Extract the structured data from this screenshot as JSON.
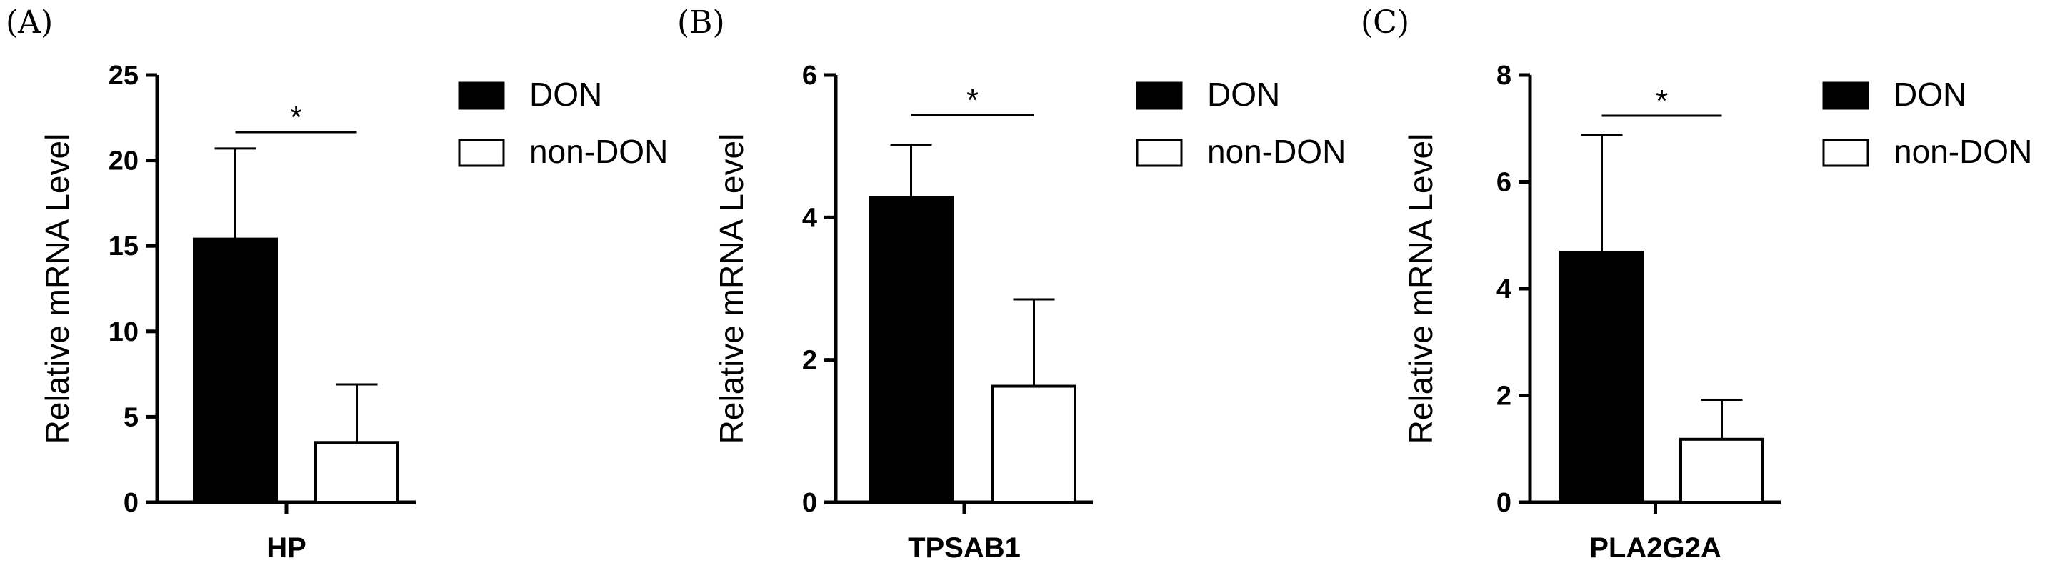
{
  "chart_data": [
    {
      "type": "bar",
      "panel_label": "(A)",
      "categories": [
        "DON",
        "non-DON"
      ],
      "values": [
        15.4,
        3.5
      ],
      "error": [
        5.3,
        3.4
      ],
      "xlabel": "HP",
      "ylabel": "Relative mRNA Level",
      "ylim": [
        0,
        25
      ],
      "yticks": [
        "0",
        "5",
        "10",
        "15",
        "20",
        "25"
      ],
      "significance": "*",
      "legend": [
        "DON",
        "non-DON"
      ],
      "legend_position": "right",
      "fill_colors": [
        "#000000",
        "#ffffff"
      ]
    },
    {
      "type": "bar",
      "panel_label": "(B)",
      "categories": [
        "DON",
        "non-DON"
      ],
      "values": [
        4.28,
        1.63
      ],
      "error": [
        0.74,
        1.22
      ],
      "xlabel": "TPSAB1",
      "ylabel": "Relative mRNA Level",
      "ylim": [
        0,
        6
      ],
      "yticks": [
        "0",
        "2",
        "4",
        "6"
      ],
      "significance": "*",
      "legend": [
        "DON",
        "non-DON"
      ],
      "legend_position": "right",
      "fill_colors": [
        "#000000",
        "#ffffff"
      ]
    },
    {
      "type": "bar",
      "panel_label": "(C)",
      "categories": [
        "DON",
        "non-DON"
      ],
      "values": [
        4.68,
        1.18
      ],
      "error": [
        2.2,
        0.74
      ],
      "xlabel": "PLA2G2A",
      "ylabel": "Relative mRNA Level",
      "ylim": [
        0,
        8
      ],
      "yticks": [
        "0",
        "2",
        "4",
        "6",
        "8"
      ],
      "significance": "*",
      "legend": [
        "DON",
        "non-DON"
      ],
      "legend_position": "right",
      "fill_colors": [
        "#000000",
        "#ffffff"
      ]
    }
  ]
}
